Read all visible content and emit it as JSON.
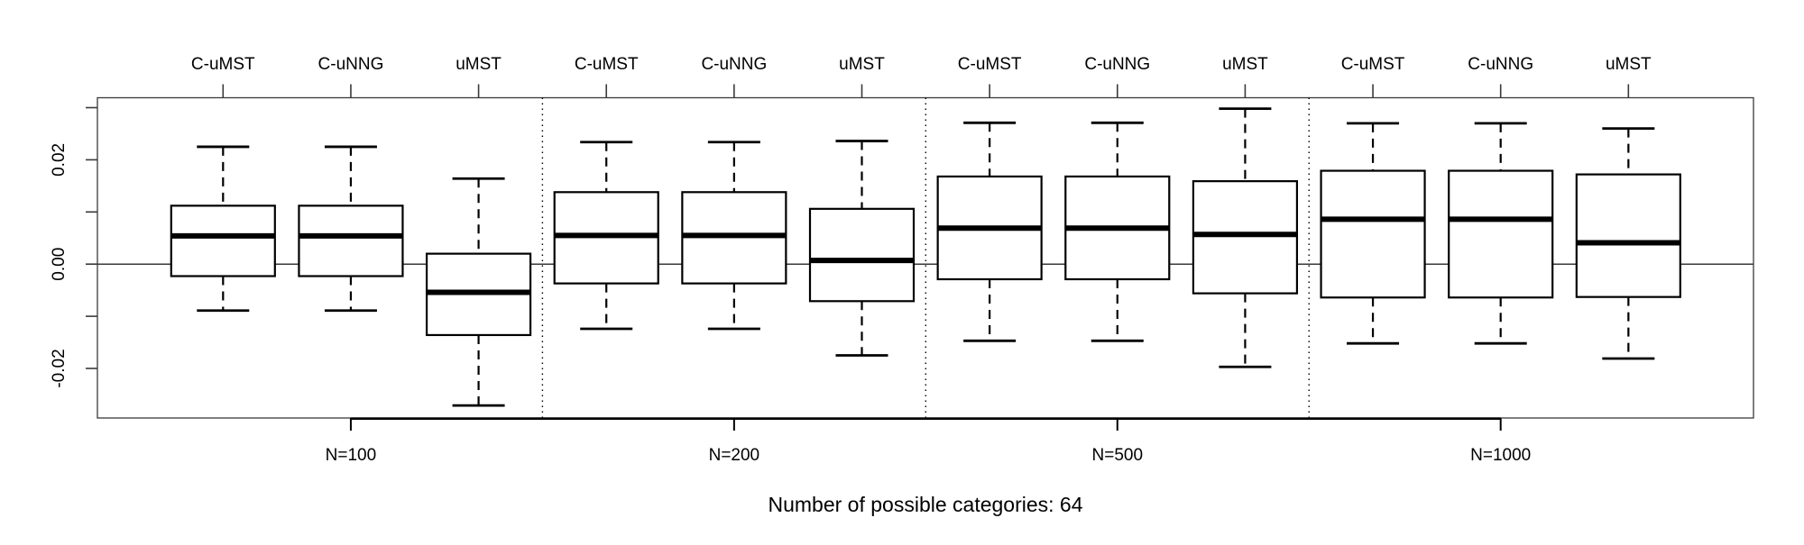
{
  "figure": {
    "background_color": "#ffffff",
    "ink_color": "#000000",
    "border_color": "#3a3a3a"
  },
  "chart_data": {
    "type": "boxplot",
    "title": "Number of possible categories: 64",
    "xlabel": "",
    "ylabel": "",
    "ylim": [
      -0.0295,
      0.0319
    ],
    "grid": false,
    "zero_reference_line": 0.0,
    "legend": "none",
    "y_axis": {
      "ticks": [
        {
          "value": 0.03,
          "label": ""
        },
        {
          "value": 0.02,
          "label": "0.02"
        },
        {
          "value": 0.01,
          "label": ""
        },
        {
          "value": 0.0,
          "label": "0.00"
        },
        {
          "value": -0.01,
          "label": ""
        },
        {
          "value": -0.02,
          "label": "-0.02"
        }
      ]
    },
    "box_labels": [
      "C-uMST",
      "C-uNNG",
      "uMST"
    ],
    "groups": [
      {
        "label": "N=100",
        "boxes": [
          {
            "name": "C-uMST",
            "whisker_low": -0.0089,
            "q1": -0.0023,
            "median": 0.0054,
            "q3": 0.0112,
            "whisker_high": 0.0225
          },
          {
            "name": "C-uNNG",
            "whisker_low": -0.0089,
            "q1": -0.0023,
            "median": 0.0054,
            "q3": 0.0112,
            "whisker_high": 0.0225
          },
          {
            "name": "uMST",
            "whisker_low": -0.0271,
            "q1": -0.0136,
            "median": -0.0054,
            "q3": 0.002,
            "whisker_high": 0.0164
          }
        ]
      },
      {
        "label": "N=200",
        "boxes": [
          {
            "name": "C-uMST",
            "whisker_low": -0.0124,
            "q1": -0.0037,
            "median": 0.0055,
            "q3": 0.0138,
            "whisker_high": 0.0234
          },
          {
            "name": "C-uNNG",
            "whisker_low": -0.0124,
            "q1": -0.0037,
            "median": 0.0055,
            "q3": 0.0138,
            "whisker_high": 0.0234
          },
          {
            "name": "uMST",
            "whisker_low": -0.0175,
            "q1": -0.0071,
            "median": 0.0007,
            "q3": 0.0106,
            "whisker_high": 0.0236
          }
        ]
      },
      {
        "label": "N=500",
        "boxes": [
          {
            "name": "C-uMST",
            "whisker_low": -0.0147,
            "q1": -0.0029,
            "median": 0.0069,
            "q3": 0.0168,
            "whisker_high": 0.0271
          },
          {
            "name": "C-uNNG",
            "whisker_low": -0.0147,
            "q1": -0.0029,
            "median": 0.0069,
            "q3": 0.0168,
            "whisker_high": 0.0271
          },
          {
            "name": "uMST",
            "whisker_low": -0.0197,
            "q1": -0.0056,
            "median": 0.0057,
            "q3": 0.0159,
            "whisker_high": 0.0298
          }
        ]
      },
      {
        "label": "N=1000",
        "boxes": [
          {
            "name": "C-uMST",
            "whisker_low": -0.0152,
            "q1": -0.0064,
            "median": 0.0086,
            "q3": 0.0179,
            "whisker_high": 0.027
          },
          {
            "name": "C-uNNG",
            "whisker_low": -0.0152,
            "q1": -0.0064,
            "median": 0.0086,
            "q3": 0.0179,
            "whisker_high": 0.027
          },
          {
            "name": "uMST",
            "whisker_low": -0.0181,
            "q1": -0.0063,
            "median": 0.0041,
            "q3": 0.0172,
            "whisker_high": 0.026
          }
        ]
      }
    ]
  }
}
